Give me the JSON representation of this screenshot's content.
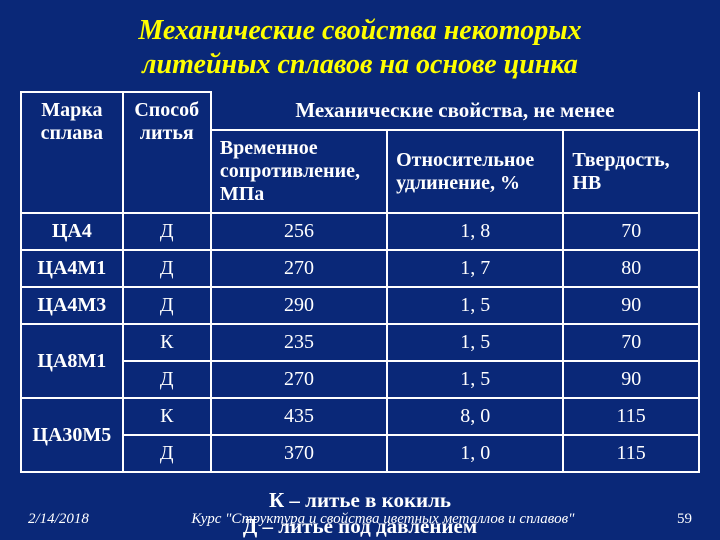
{
  "title_l1": "Механические свойства некоторых",
  "title_l2": "литейных сплавов на основе цинка",
  "group_header": "Механические свойства, не менее",
  "hdr": {
    "marka": "Марка сплава",
    "sposob": "Способ литья",
    "vrem": "Временное сопротивление, МПа",
    "otn": "Относительное удлинение, %",
    "tv": "Твердость, НВ"
  },
  "rows": [
    {
      "m": "ЦА4",
      "s": "Д",
      "v": "256",
      "o": "1, 8",
      "t": "70"
    },
    {
      "m": "ЦА4М1",
      "s": "Д",
      "v": "270",
      "o": "1, 7",
      "t": "80"
    },
    {
      "m": "ЦА4М3",
      "s": "Д",
      "v": "290",
      "o": "1, 5",
      "t": "90"
    },
    {
      "m": "ЦА8М1",
      "s": "К",
      "v": "235",
      "o": "1, 5",
      "t": "70",
      "rs": 2
    },
    {
      "m": "",
      "s": "Д",
      "v": "270",
      "o": "1, 5",
      "t": "90"
    },
    {
      "m": "ЦА30М5",
      "s": "К",
      "v": "435",
      "o": "8, 0",
      "t": "115",
      "rs": 2
    },
    {
      "m": "",
      "s": "Д",
      "v": "370",
      "o": "1, 0",
      "t": "115"
    }
  ],
  "legend_l1": "К – литье в кокиль",
  "legend_l2": "Д – литье под давлением",
  "footer": {
    "date": "2/14/2018",
    "course": "Курс \"Структура и свойства цветных металлов и сплавов\"",
    "page": "59"
  },
  "cols": {
    "c1": "15%",
    "c2": "13%",
    "c3": "26%",
    "c4": "26%",
    "c5": "20%"
  }
}
